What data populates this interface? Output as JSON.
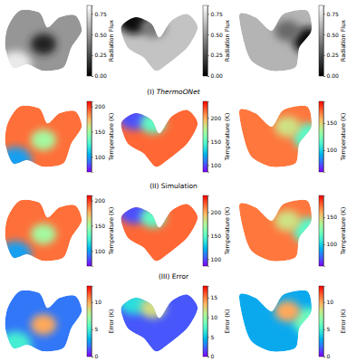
{
  "chart_data": [
    {
      "type": "heatmap",
      "color": "gray",
      "values": [
        0.5,
        0.78,
        0.12
      ],
      "colorbar": {
        "label": "Radiation Flux",
        "range": [
          0,
          0.85
        ],
        "ticks": [
          {
            "value": 0,
            "label": "0.00"
          },
          {
            "value": 0.25,
            "label": "0.25"
          },
          {
            "value": 0.5,
            "label": "0.50"
          },
          {
            "value": 0.75,
            "label": "0.75"
          }
        ]
      }
    },
    {
      "type": "heatmap",
      "color": "gray",
      "values": [
        0.65,
        0.05,
        0.4
      ],
      "colorbar": {
        "label": "Radiation Flux",
        "range": [
          0,
          0.85
        ],
        "ticks": [
          {
            "value": 0,
            "label": "0.00"
          },
          {
            "value": 0.25,
            "label": "0.25"
          },
          {
            "value": 0.5,
            "label": "0.50"
          },
          {
            "value": 0.75,
            "label": "0.75"
          }
        ]
      }
    },
    {
      "type": "heatmap",
      "color": "gray",
      "values": [
        0.6,
        0.05,
        0.35
      ],
      "colorbar": {
        "label": "Radiation Flux",
        "range": [
          0,
          0.85
        ],
        "ticks": [
          {
            "value": 0,
            "label": "0.00"
          },
          {
            "value": 0.25,
            "label": "0.25"
          },
          {
            "value": 0.5,
            "label": "0.50"
          },
          {
            "value": 0.75,
            "label": "0.75"
          }
        ]
      }
    },
    {
      "type": "heatmap",
      "color": "rainbow",
      "values": [
        190,
        100,
        150
      ],
      "colorbar": {
        "label": "Temperature (K)",
        "range": [
          70,
          210
        ],
        "ticks": [
          100,
          150,
          200
        ]
      }
    },
    {
      "type": "heatmap",
      "color": "rainbow",
      "values": [
        215,
        100,
        150
      ],
      "colorbar": {
        "label": "Temperature (K)",
        "range": [
          85,
          235
        ],
        "ticks": [
          100,
          150,
          200
        ]
      }
    },
    {
      "type": "heatmap",
      "color": "rainbow",
      "values": [
        170,
        115,
        145
      ],
      "colorbar": {
        "label": "Temperature (K)",
        "range": [
          60,
          190
        ],
        "ticks": [
          100,
          150
        ]
      }
    },
    {
      "type": "heatmap",
      "color": "rainbow",
      "values": [
        190,
        100,
        150
      ],
      "colorbar": {
        "label": "Temperature (K)",
        "range": [
          70,
          210
        ],
        "ticks": [
          100,
          150,
          200
        ]
      }
    },
    {
      "type": "heatmap",
      "color": "rainbow",
      "values": [
        215,
        100,
        150
      ],
      "colorbar": {
        "label": "Temperature (K)",
        "range": [
          85,
          235
        ],
        "ticks": [
          100,
          150,
          200
        ]
      }
    },
    {
      "type": "heatmap",
      "color": "rainbow",
      "values": [
        170,
        115,
        145
      ],
      "colorbar": {
        "label": "Temperature (K)",
        "range": [
          60,
          190
        ],
        "ticks": [
          100,
          150
        ]
      }
    },
    {
      "type": "heatmap",
      "color": "rainbow",
      "values": [
        2,
        5,
        10
      ],
      "colorbar": {
        "label": "Error (K)",
        "range": [
          0,
          13
        ],
        "ticks": [
          0,
          5,
          10
        ]
      }
    },
    {
      "type": "heatmap",
      "color": "rainbow",
      "values": [
        2,
        6,
        12
      ],
      "colorbar": {
        "label": "Error (K)",
        "range": [
          0,
          18
        ],
        "ticks": [
          0,
          5,
          10,
          15
        ]
      }
    },
    {
      "type": "heatmap",
      "color": "rainbow",
      "values": [
        3,
        6,
        10
      ],
      "colorbar": {
        "label": "Error (K)",
        "range": [
          0,
          13
        ],
        "ticks": [
          0,
          5,
          10
        ]
      }
    }
  ],
  "row_titles": [
    "(I) ThermoONet",
    "(II) Simulation",
    "(III) Error"
  ]
}
